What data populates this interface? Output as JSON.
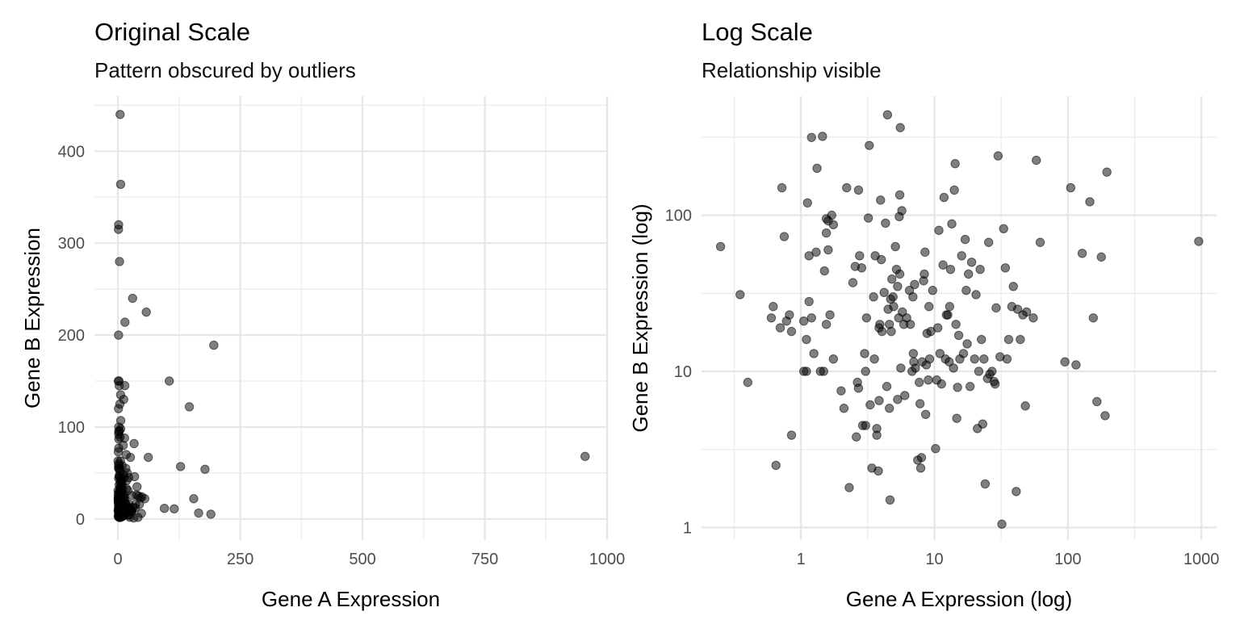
{
  "chart_data": [
    {
      "type": "scatter",
      "title": "Original Scale",
      "subtitle": "Pattern obscured by outliers",
      "xlabel": "Gene A Expression",
      "ylabel": "Gene B Expression",
      "xscale": "linear",
      "yscale": "linear",
      "xlim": [
        -48,
        1000
      ],
      "ylim": [
        -23,
        460
      ],
      "xticks": [
        0,
        250,
        500,
        750,
        1000
      ],
      "yticks": [
        0,
        100,
        200,
        300,
        400
      ],
      "xtick_labels": [
        "0",
        "250",
        "500",
        "750",
        "1000"
      ],
      "ytick_labels": [
        "0",
        "100",
        "200",
        "300",
        "400"
      ],
      "grid": true,
      "point_color": "#000000",
      "point_opacity": 0.5,
      "series": [
        {
          "points": [
            [
              0.25,
              63
            ],
            [
              0.35,
              31
            ],
            [
              0.4,
              8.5
            ],
            [
              0.6,
              22
            ],
            [
              0.62,
              26
            ],
            [
              0.65,
              2.5
            ],
            [
              0.7,
              19
            ],
            [
              0.72,
              150
            ],
            [
              0.75,
              73
            ],
            [
              0.78,
              21
            ],
            [
              0.82,
              23
            ],
            [
              0.85,
              18
            ],
            [
              0.85,
              3.9
            ],
            [
              1.05,
              10
            ],
            [
              1.1,
              16
            ],
            [
              1.1,
              10
            ],
            [
              1.12,
              120
            ],
            [
              1.15,
              28
            ],
            [
              1.15,
              55
            ],
            [
              1.2,
              22
            ],
            [
              1.25,
              13
            ],
            [
              1.3,
              58
            ],
            [
              1.32,
              200
            ],
            [
              1.4,
              10
            ],
            [
              1.45,
              320
            ],
            [
              1.48,
              10
            ],
            [
              1.5,
              44
            ],
            [
              1.55,
              20
            ],
            [
              1.55,
              77
            ],
            [
              1.55,
              95
            ],
            [
              1.6,
              92
            ],
            [
              1.6,
              60
            ],
            [
              1.65,
              23
            ],
            [
              1.7,
              100
            ],
            [
              1.75,
              87
            ],
            [
              1.75,
              12
            ],
            [
              2.0,
              7.5
            ],
            [
              2.1,
              5.8
            ],
            [
              2.2,
              150
            ],
            [
              2.3,
              1.8
            ],
            [
              2.45,
              37
            ],
            [
              2.55,
              47
            ],
            [
              2.6,
              3.8
            ],
            [
              2.65,
              8.5
            ],
            [
              2.7,
              7.8
            ],
            [
              2.7,
              145
            ],
            [
              2.75,
              55
            ],
            [
              2.85,
              46
            ],
            [
              2.9,
              4.5
            ],
            [
              3.0,
              13
            ],
            [
              3.05,
              4.5
            ],
            [
              3.05,
              10
            ],
            [
              3.1,
              22
            ],
            [
              3.2,
              96
            ],
            [
              3.25,
              280
            ],
            [
              3.3,
              6.1
            ],
            [
              3.4,
              2.4
            ],
            [
              3.5,
              30
            ],
            [
              3.55,
              12
            ],
            [
              3.6,
              55
            ],
            [
              3.7,
              4.3
            ],
            [
              3.7,
              3.9
            ],
            [
              3.8,
              2.3
            ],
            [
              3.85,
              6.5
            ],
            [
              3.85,
              19
            ],
            [
              3.9,
              20
            ],
            [
              3.95,
              125
            ],
            [
              4.0,
              52
            ],
            [
              4.05,
              18
            ],
            [
              4.2,
              32
            ],
            [
              4.3,
              89
            ],
            [
              4.4,
              8
            ],
            [
              4.45,
              440
            ],
            [
              4.5,
              25
            ],
            [
              4.6,
              20
            ],
            [
              4.6,
              5.8
            ],
            [
              4.65,
              1.5
            ],
            [
              4.7,
              29
            ],
            [
              4.75,
              18
            ],
            [
              4.8,
              39
            ],
            [
              4.9,
              30
            ],
            [
              4.95,
              26
            ],
            [
              5.1,
              63
            ],
            [
              5.2,
              45
            ],
            [
              5.3,
              6.6
            ],
            [
              5.3,
              35
            ],
            [
              5.4,
              22
            ],
            [
              5.45,
              98
            ],
            [
              5.5,
              42
            ],
            [
              5.5,
              135
            ],
            [
              5.55,
              364
            ],
            [
              5.6,
              10.5
            ],
            [
              5.7,
              107
            ],
            [
              5.75,
              24
            ],
            [
              5.9,
              20
            ],
            [
              6.0,
              7
            ],
            [
              6.2,
              22
            ],
            [
              6.5,
              33
            ],
            [
              6.6,
              20
            ],
            [
              6.8,
              10
            ],
            [
              6.9,
              30
            ],
            [
              6.95,
              13
            ],
            [
              7.0,
              11.5
            ],
            [
              7.1,
              36
            ],
            [
              7.2,
              10.5
            ],
            [
              7.5,
              2.7
            ],
            [
              7.7,
              8.5
            ],
            [
              7.8,
              6.2
            ],
            [
              7.9,
              2.4
            ],
            [
              8.0,
              2.8
            ],
            [
              8.1,
              11.5
            ],
            [
              8.3,
              38
            ],
            [
              8.4,
              42
            ],
            [
              8.5,
              58
            ],
            [
              8.6,
              5.3
            ],
            [
              8.7,
              11
            ],
            [
              8.8,
              17.5
            ],
            [
              9.0,
              8.8
            ],
            [
              9.1,
              26
            ],
            [
              9.2,
              12
            ],
            [
              9.4,
              18
            ],
            [
              9.7,
              33
            ],
            [
              10.2,
              3.2
            ],
            [
              10.4,
              8.8
            ],
            [
              10.6,
              19
            ],
            [
              10.8,
              80
            ],
            [
              11.0,
              13
            ],
            [
              11.3,
              8.3
            ],
            [
              11.6,
              48
            ],
            [
              11.8,
              130
            ],
            [
              12.1,
              12
            ],
            [
              12.3,
              23
            ],
            [
              12.6,
              23
            ],
            [
              12.9,
              11.5
            ],
            [
              13.0,
              26
            ],
            [
              13.2,
              45
            ],
            [
              13.5,
              88
            ],
            [
              13.9,
              10.5
            ],
            [
              14.1,
              145
            ],
            [
              14.3,
              214
            ],
            [
              14.5,
              20
            ],
            [
              14.7,
              5
            ],
            [
              14.9,
              7.9
            ],
            [
              15.2,
              17
            ],
            [
              15.5,
              12
            ],
            [
              16.0,
              55
            ],
            [
              16.5,
              13
            ],
            [
              17.0,
              70
            ],
            [
              17.3,
              33
            ],
            [
              17.6,
              15
            ],
            [
              18.0,
              42
            ],
            [
              18.5,
              8
            ],
            [
              19.0,
              50
            ],
            [
              20.0,
              12
            ],
            [
              20.5,
              31
            ],
            [
              21.0,
              4.3
            ],
            [
              21.5,
              10
            ],
            [
              22.0,
              45
            ],
            [
              22.5,
              16
            ],
            [
              23.0,
              4.6
            ],
            [
              23.5,
              12
            ],
            [
              24.0,
              1.9
            ],
            [
              25.0,
              9
            ],
            [
              25.5,
              67
            ],
            [
              26.0,
              9.6
            ],
            [
              27.0,
              10
            ],
            [
              28.0,
              8.6
            ],
            [
              28.5,
              8.3
            ],
            [
              29.0,
              25.5
            ],
            [
              30.0,
              240
            ],
            [
              31.0,
              12.4
            ],
            [
              32.0,
              1.05
            ],
            [
              33.0,
              82
            ],
            [
              34.0,
              46
            ],
            [
              35.0,
              12
            ],
            [
              36.0,
              16
            ],
            [
              38.0,
              26
            ],
            [
              39.0,
              35
            ],
            [
              41.0,
              1.7
            ],
            [
              42.0,
              25
            ],
            [
              44.0,
              16
            ],
            [
              46.0,
              23
            ],
            [
              48.0,
              6
            ],
            [
              49.0,
              24
            ],
            [
              55.0,
              22
            ],
            [
              58.0,
              225
            ],
            [
              62.0,
              67
            ],
            [
              95.0,
              11.5
            ],
            [
              105.0,
              150
            ],
            [
              115.0,
              11
            ],
            [
              128.0,
              57
            ],
            [
              146.0,
              122
            ],
            [
              155.0,
              22
            ],
            [
              165.0,
              6.4
            ],
            [
              178.0,
              54
            ],
            [
              190.0,
              5.2
            ],
            [
              196.0,
              189
            ],
            [
              955.0,
              68
            ],
            [
              1.2,
              315
            ],
            [
              1.05,
              21
            ]
          ]
        }
      ]
    },
    {
      "type": "scatter",
      "title": "Log Scale",
      "subtitle": "Relationship visible",
      "xlabel": "Gene A Expression (log)",
      "ylabel": "Gene B Expression (log)",
      "xscale": "log10",
      "yscale": "log10",
      "xlim": [
        0.18,
        1300
      ],
      "ylim": [
        0.83,
        580
      ],
      "xticks": [
        1,
        10,
        100,
        1000
      ],
      "yticks": [
        1,
        10,
        100
      ],
      "xtick_labels": [
        "1",
        "10",
        "100",
        "1000"
      ],
      "ytick_labels": [
        "1",
        "10",
        "100"
      ],
      "grid": true,
      "point_color": "#000000",
      "point_opacity": 0.5,
      "series": [
        {
          "points": "same as panel 1"
        }
      ]
    }
  ]
}
